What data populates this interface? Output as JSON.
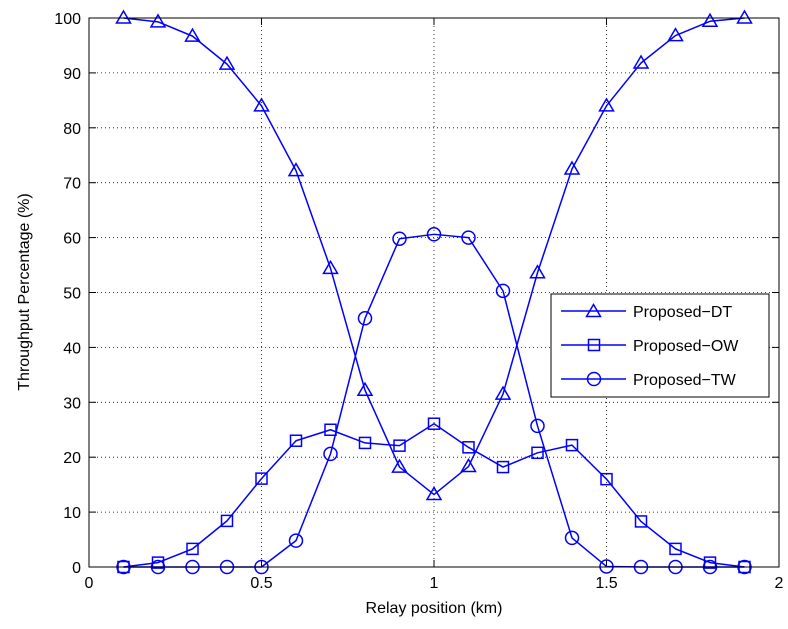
{
  "chart_data": {
    "type": "line",
    "title": "",
    "xlabel": "Relay position (km)",
    "ylabel": "Throughput Percentage (%)",
    "xlim": [
      0,
      2
    ],
    "ylim": [
      0,
      100
    ],
    "xticks": [
      0,
      0.5,
      1,
      1.5,
      2
    ],
    "xtick_labels": [
      "0",
      "0.5",
      "1",
      "1.5",
      "2"
    ],
    "yticks": [
      0,
      10,
      20,
      30,
      40,
      50,
      60,
      70,
      80,
      90,
      100
    ],
    "ytick_labels": [
      "0",
      "10",
      "20",
      "30",
      "40",
      "50",
      "60",
      "70",
      "80",
      "90",
      "100"
    ],
    "grid": true,
    "legend_position": "right",
    "line_color": "#0000ff",
    "x": [
      0.1,
      0.2,
      0.3,
      0.4,
      0.5,
      0.6,
      0.7,
      0.8,
      0.9,
      1.0,
      1.1,
      1.2,
      1.3,
      1.4,
      1.5,
      1.6,
      1.7,
      1.8,
      1.9
    ],
    "series": [
      {
        "name": "Proposed−DT",
        "marker": "triangle",
        "values": [
          100,
          99.3,
          96.7,
          91.6,
          84,
          72.2,
          54.4,
          32.2,
          18.2,
          13.2,
          18.3,
          31.5,
          53.6,
          72.5,
          84,
          91.8,
          96.8,
          99.4,
          100
        ]
      },
      {
        "name": "Proposed−OW",
        "marker": "square",
        "values": [
          0,
          0.8,
          3.3,
          8.4,
          16.1,
          23,
          25,
          22.6,
          22.1,
          26.1,
          21.8,
          18.2,
          20.8,
          22.2,
          16,
          8.3,
          3.3,
          0.8,
          0
        ]
      },
      {
        "name": "Proposed−TW",
        "marker": "circle",
        "values": [
          0,
          0,
          0,
          0,
          0,
          4.8,
          20.6,
          45.3,
          59.8,
          60.6,
          60,
          50.3,
          25.7,
          5.3,
          0.1,
          0,
          0,
          0,
          0
        ]
      }
    ]
  }
}
